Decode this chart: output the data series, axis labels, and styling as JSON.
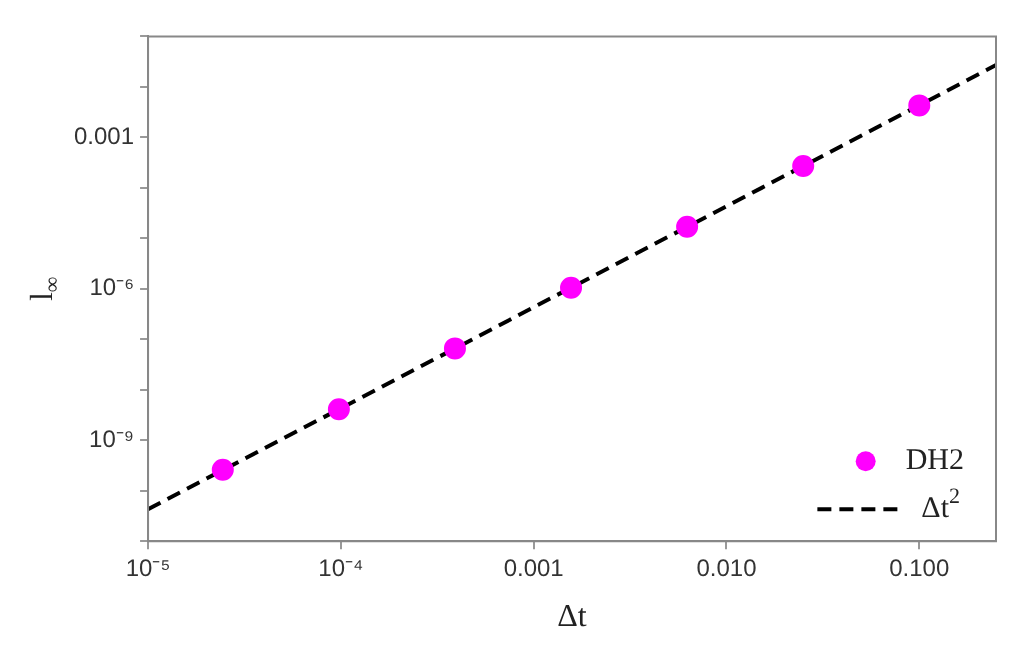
{
  "chart_data": {
    "type": "scatter",
    "xlabel": "Δt",
    "ylabel": "l$_{∞}$",
    "log": "xy",
    "grid": false,
    "legend": "bottom right",
    "xlim": [
      1e-05,
      0.25
    ],
    "ylim": [
      1e-11,
      0.1
    ],
    "xticks": [
      {
        "value": 1e-05,
        "label": "10⁻⁵"
      },
      {
        "value": 0.0001,
        "label": "10⁻⁴"
      },
      {
        "value": 0.001,
        "label": "0.001"
      },
      {
        "value": 0.01,
        "label": "0.010"
      },
      {
        "value": 0.1,
        "label": "0.100"
      }
    ],
    "yticks": [
      {
        "value": 1e-11,
        "label": null
      },
      {
        "value": 1e-10,
        "label": null
      },
      {
        "value": 1e-09,
        "label": "10⁻⁹"
      },
      {
        "value": 1e-08,
        "label": null
      },
      {
        "value": 1e-07,
        "label": null
      },
      {
        "value": 1e-06,
        "label": "10⁻⁶"
      },
      {
        "value": 1e-05,
        "label": null
      },
      {
        "value": 0.0001,
        "label": null
      },
      {
        "value": 0.001,
        "label": "0.001"
      },
      {
        "value": 0.01,
        "label": null
      },
      {
        "value": 0.1,
        "label": null
      }
    ],
    "series": [
      {
        "name": "DH2",
        "color": "#ff00ff",
        "marker": "circle",
        "x": [
          0.1,
          0.025,
          0.00625,
          0.0015625,
          0.000390625,
          9.765625e-05,
          2.44140625e-05
        ],
        "values": [
          0.0043,
          0.00027,
          1.7e-05,
          1.05e-06,
          6.6e-08,
          4.1e-09,
          2.6e-10
        ]
      },
      {
        "name": "Δt$^{2}$",
        "type": "line",
        "color": "#000000",
        "marker": "none",
        "line_style": "dashed",
        "x": [
          1e-05,
          0.25
        ],
        "values": [
          4.3e-11,
          0.027
        ]
      }
    ]
  }
}
